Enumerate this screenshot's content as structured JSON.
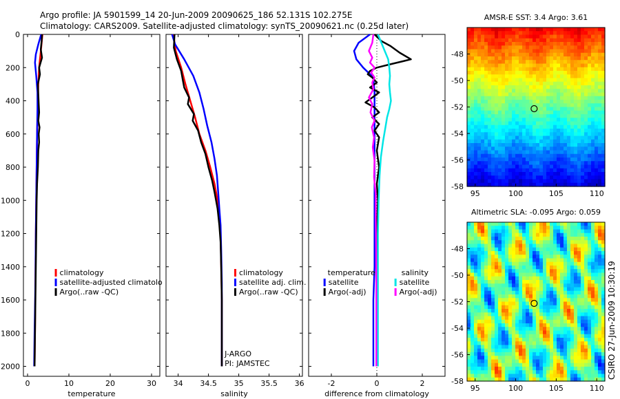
{
  "header": {
    "line1": "Argo profile: JA 5901599_14 20-Jun-2009 20090625_186 52.131S 102.275E",
    "line2": "Climatology: CARS2009. Satellite-adjusted climatology: synTS_20090621.nc (0.25d later)"
  },
  "credit": "CSIRO 27-Jun-2009 10:30:19",
  "colors": {
    "climatology": "#ff0000",
    "satellite": "#0000ff",
    "argo": "#000000",
    "salinity_satellite": "#00e5e5",
    "salinity_argo": "#ff00ff"
  },
  "chart_data": [
    {
      "id": "temperature",
      "type": "line",
      "xlabel": "temperature",
      "ylabel": "",
      "xlim": [
        -1,
        32
      ],
      "ylim": [
        2060,
        0
      ],
      "xticks": [
        "0",
        "10",
        "20",
        "30"
      ],
      "xtick_values": [
        0,
        10,
        20,
        30
      ],
      "yticks": [
        "0",
        "200",
        "400",
        "600",
        "800",
        "1000",
        "1200",
        "1400",
        "1600",
        "1800",
        "2000"
      ],
      "ytick_values": [
        0,
        200,
        400,
        600,
        800,
        1000,
        1200,
        1400,
        1600,
        1800,
        2000
      ],
      "legend": {
        "placement": "right",
        "entries": [
          "climatology",
          "satellite-adjusted climatolo",
          "Argo(..raw -QC)"
        ]
      },
      "series": [
        {
          "name": "climatology",
          "color": "#ff0000",
          "points": [
            [
              3.6,
              0
            ],
            [
              3.3,
              80
            ],
            [
              3.0,
              150
            ],
            [
              2.8,
              200
            ],
            [
              2.6,
              300
            ],
            [
              2.5,
              400
            ],
            [
              2.4,
              500
            ],
            [
              2.3,
              600
            ],
            [
              2.2,
              800
            ],
            [
              2.1,
              1000
            ],
            [
              2.0,
              1200
            ],
            [
              1.9,
              1500
            ],
            [
              1.8,
              1800
            ],
            [
              1.7,
              2000
            ]
          ]
        },
        {
          "name": "satellite-adjusted climatolo",
          "color": "#0000ff",
          "points": [
            [
              3.3,
              0
            ],
            [
              2.6,
              60
            ],
            [
              2.0,
              120
            ],
            [
              1.8,
              170
            ],
            [
              2.1,
              250
            ],
            [
              2.4,
              350
            ],
            [
              2.4,
              450
            ],
            [
              2.3,
              600
            ],
            [
              2.2,
              800
            ],
            [
              2.1,
              1000
            ],
            [
              2.0,
              1200
            ],
            [
              1.9,
              1500
            ],
            [
              1.7,
              1800
            ],
            [
              1.6,
              2000
            ]
          ]
        },
        {
          "name": "Argo(..raw -QC)",
          "color": "#000000",
          "points": [
            [
              3.5,
              0
            ],
            [
              3.4,
              40
            ],
            [
              3.2,
              90
            ],
            [
              3.5,
              140
            ],
            [
              2.8,
              200
            ],
            [
              3.0,
              240
            ],
            [
              2.5,
              300
            ],
            [
              2.6,
              360
            ],
            [
              2.7,
              420
            ],
            [
              2.8,
              470
            ],
            [
              2.6,
              520
            ],
            [
              2.9,
              560
            ],
            [
              2.7,
              600
            ],
            [
              2.8,
              650
            ],
            [
              2.6,
              700
            ],
            [
              2.5,
              800
            ],
            [
              2.3,
              900
            ],
            [
              2.2,
              1000
            ],
            [
              2.1,
              1200
            ],
            [
              2.0,
              1400
            ],
            [
              1.9,
              1600
            ],
            [
              1.8,
              1800
            ],
            [
              1.7,
              2000
            ]
          ]
        }
      ]
    },
    {
      "id": "salinity",
      "type": "line",
      "xlabel": "salinity",
      "ylabel": "",
      "xlim": [
        33.8,
        36.05
      ],
      "ylim": [
        2060,
        0
      ],
      "xticks": [
        "34",
        "34.5",
        "35",
        "35.5",
        "36"
      ],
      "xtick_values": [
        34,
        34.5,
        35,
        35.5,
        36
      ],
      "legend": {
        "placement": "right",
        "entries": [
          "climatology",
          "satellite adj. clim.",
          "Argo(..raw -QC)"
        ]
      },
      "annotation": [
        "J-ARGO",
        "PI: JAMSTEC"
      ],
      "series": [
        {
          "name": "climatology",
          "color": "#ff0000",
          "points": [
            [
              33.92,
              0
            ],
            [
              33.96,
              100
            ],
            [
              34.05,
              200
            ],
            [
              34.12,
              300
            ],
            [
              34.2,
              400
            ],
            [
              34.28,
              500
            ],
            [
              34.35,
              600
            ],
            [
              34.45,
              700
            ],
            [
              34.53,
              800
            ],
            [
              34.6,
              900
            ],
            [
              34.65,
              1000
            ],
            [
              34.68,
              1100
            ],
            [
              34.7,
              1200
            ],
            [
              34.71,
              1400
            ],
            [
              34.72,
              1600
            ],
            [
              34.72,
              1800
            ],
            [
              34.72,
              2000
            ]
          ]
        },
        {
          "name": "satellite adj. clim.",
          "color": "#0000ff",
          "points": [
            [
              33.9,
              0
            ],
            [
              33.95,
              60
            ],
            [
              34.1,
              150
            ],
            [
              34.25,
              250
            ],
            [
              34.35,
              350
            ],
            [
              34.42,
              450
            ],
            [
              34.48,
              550
            ],
            [
              34.55,
              650
            ],
            [
              34.6,
              750
            ],
            [
              34.64,
              850
            ],
            [
              34.66,
              950
            ],
            [
              34.68,
              1050
            ],
            [
              34.7,
              1150
            ],
            [
              34.71,
              1300
            ],
            [
              34.72,
              1500
            ],
            [
              34.72,
              1800
            ],
            [
              34.72,
              2000
            ]
          ]
        },
        {
          "name": "Argo(..raw -QC)",
          "color": "#000000",
          "points": [
            [
              33.94,
              0
            ],
            [
              33.93,
              80
            ],
            [
              33.98,
              150
            ],
            [
              34.05,
              220
            ],
            [
              34.08,
              280
            ],
            [
              34.1,
              320
            ],
            [
              34.18,
              380
            ],
            [
              34.16,
              420
            ],
            [
              34.26,
              480
            ],
            [
              34.24,
              520
            ],
            [
              34.33,
              580
            ],
            [
              34.38,
              650
            ],
            [
              34.45,
              720
            ],
            [
              34.5,
              800
            ],
            [
              34.56,
              880
            ],
            [
              34.6,
              950
            ],
            [
              34.65,
              1050
            ],
            [
              34.68,
              1150
            ],
            [
              34.7,
              1250
            ],
            [
              34.71,
              1400
            ],
            [
              34.72,
              1600
            ],
            [
              34.72,
              1800
            ],
            [
              34.72,
              2000
            ]
          ]
        }
      ]
    },
    {
      "id": "difference",
      "type": "line",
      "xlabel": "difference from climatology",
      "ylabel": "",
      "xlim": [
        -3,
        3
      ],
      "ylim": [
        2060,
        0
      ],
      "xticks": [
        "-2",
        "0",
        "2"
      ],
      "xtick_values": [
        -2,
        0,
        2
      ],
      "zero_line": true,
      "legend": {
        "placement": "right",
        "groups": [
          {
            "title": "temperature",
            "entries": [
              "satellite",
              "Argo(-adj)"
            ]
          },
          {
            "title": "salinity",
            "entries": [
              "satellite",
              "Argo(-adj)"
            ]
          }
        ]
      },
      "series": [
        {
          "name": "temperature satellite",
          "color": "#0000ff",
          "points": [
            [
              -0.3,
              0
            ],
            [
              -0.8,
              50
            ],
            [
              -1.0,
              100
            ],
            [
              -0.9,
              150
            ],
            [
              -0.6,
              200
            ],
            [
              -0.15,
              260
            ],
            [
              -0.1,
              350
            ],
            [
              -0.1,
              450
            ],
            [
              -0.1,
              550
            ],
            [
              -0.1,
              650
            ],
            [
              -0.1,
              800
            ],
            [
              -0.1,
              1000
            ],
            [
              -0.1,
              1200
            ],
            [
              -0.1,
              1400
            ],
            [
              -0.15,
              1600
            ],
            [
              -0.15,
              1800
            ],
            [
              -0.15,
              2000
            ]
          ]
        },
        {
          "name": "temperature Argo(-adj)",
          "color": "#000000",
          "points": [
            [
              -0.1,
              0
            ],
            [
              0.2,
              40
            ],
            [
              0.6,
              70
            ],
            [
              1.0,
              110
            ],
            [
              1.5,
              150
            ],
            [
              1.2,
              160
            ],
            [
              0.6,
              180
            ],
            [
              0.3,
              190
            ],
            [
              0.0,
              200
            ],
            [
              -0.3,
              220
            ],
            [
              -0.4,
              240
            ],
            [
              -0.2,
              260
            ],
            [
              0.0,
              290
            ],
            [
              -0.3,
              320
            ],
            [
              0.1,
              350
            ],
            [
              -0.2,
              380
            ],
            [
              -0.5,
              410
            ],
            [
              -0.1,
              440
            ],
            [
              0.1,
              470
            ],
            [
              -0.2,
              500
            ],
            [
              0.1,
              540
            ],
            [
              -0.1,
              580
            ],
            [
              0.1,
              620
            ],
            [
              0.0,
              700
            ],
            [
              0.1,
              800
            ],
            [
              0.0,
              900
            ],
            [
              0.05,
              1000
            ],
            [
              0.0,
              1200
            ],
            [
              0.02,
              1400
            ],
            [
              0.0,
              1600
            ],
            [
              0.02,
              1800
            ],
            [
              0.0,
              2000
            ]
          ]
        },
        {
          "name": "salinity satellite",
          "color": "#00e5e5",
          "points": [
            [
              0.05,
              0
            ],
            [
              0.2,
              50
            ],
            [
              0.35,
              100
            ],
            [
              0.5,
              150
            ],
            [
              0.55,
              200
            ],
            [
              0.58,
              250
            ],
            [
              0.55,
              300
            ],
            [
              0.58,
              350
            ],
            [
              0.62,
              400
            ],
            [
              0.55,
              450
            ],
            [
              0.45,
              500
            ],
            [
              0.38,
              560
            ],
            [
              0.28,
              640
            ],
            [
              0.18,
              740
            ],
            [
              0.12,
              850
            ],
            [
              0.08,
              1000
            ],
            [
              0.05,
              1200
            ],
            [
              0.05,
              1400
            ],
            [
              0.05,
              1600
            ],
            [
              0.05,
              1800
            ],
            [
              0.05,
              2000
            ]
          ]
        },
        {
          "name": "salinity Argo(-adj)",
          "color": "#ff00ff",
          "points": [
            [
              -0.15,
              0
            ],
            [
              -0.2,
              50
            ],
            [
              -0.35,
              100
            ],
            [
              -0.2,
              140
            ],
            [
              -0.3,
              170
            ],
            [
              -0.1,
              200
            ],
            [
              -0.25,
              230
            ],
            [
              -0.1,
              260
            ],
            [
              -0.2,
              290
            ],
            [
              -0.15,
              330
            ],
            [
              -0.35,
              380
            ],
            [
              -0.2,
              420
            ],
            [
              -0.28,
              470
            ],
            [
              -0.1,
              520
            ],
            [
              -0.22,
              560
            ],
            [
              -0.12,
              620
            ],
            [
              -0.18,
              680
            ],
            [
              -0.1,
              760
            ],
            [
              -0.12,
              860
            ],
            [
              -0.05,
              960
            ],
            [
              -0.05,
              1100
            ],
            [
              -0.03,
              1300
            ],
            [
              -0.02,
              1500
            ],
            [
              -0.02,
              1800
            ],
            [
              -0.02,
              2000
            ]
          ]
        }
      ]
    },
    {
      "id": "sst_map",
      "type": "heatmap",
      "title": "AMSR-E SST: 3.4 Argo: 3.61",
      "xlim": [
        94,
        111
      ],
      "ylim": [
        -58,
        -46
      ],
      "xticks": [
        "95",
        "100",
        "105",
        "110"
      ],
      "xtick_values": [
        95,
        100,
        105,
        110
      ],
      "yticks": [
        "-48",
        "-50",
        "-52",
        "-54",
        "-56",
        "-58"
      ],
      "ytick_values": [
        -48,
        -50,
        -52,
        -54,
        -56,
        -58
      ],
      "marker": {
        "lon": 102.275,
        "lat": -52.131
      }
    },
    {
      "id": "sla_map",
      "type": "heatmap",
      "title": "Altimetric SLA: -0.095 Argo: 0.059",
      "xlim": [
        94,
        111
      ],
      "ylim": [
        -58,
        -46
      ],
      "xticks": [
        "95",
        "100",
        "105",
        "110"
      ],
      "xtick_values": [
        95,
        100,
        105,
        110
      ],
      "yticks": [
        "-48",
        "-50",
        "-52",
        "-54",
        "-56",
        "-58"
      ],
      "ytick_values": [
        -48,
        -50,
        -52,
        -54,
        -56,
        -58
      ],
      "marker": {
        "lon": 102.275,
        "lat": -52.131
      }
    }
  ]
}
